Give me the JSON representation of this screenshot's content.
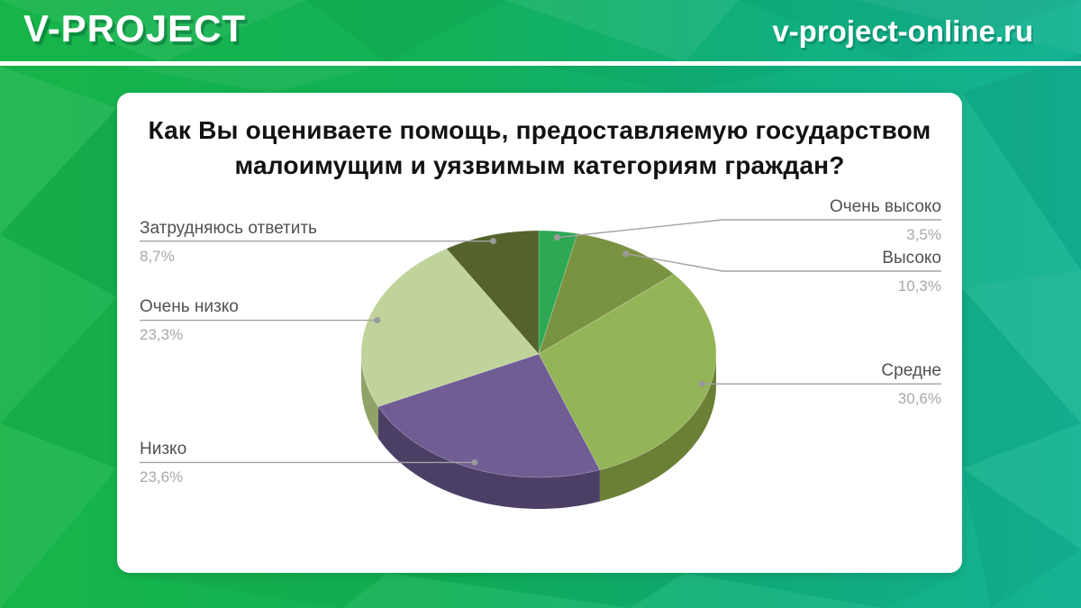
{
  "header": {
    "logo": "V-PROJECT",
    "site": "v-project-online.ru"
  },
  "chart_data": {
    "type": "pie",
    "projection": "3d",
    "title": "Как Вы оцениваете помощь, предоставляемую государством малоимущим и уязвимым категориям граждан?",
    "unit": "%",
    "direction": "clockwise",
    "start_angle_deg": 0,
    "legend": "none (callout labels with leader lines)",
    "slices": [
      {
        "label": "Очень высоко",
        "value": 3.5,
        "value_label": "3,5%",
        "color": "#2ea853",
        "side_color": "#1f7a3b"
      },
      {
        "label": "Высоко",
        "value": 10.3,
        "value_label": "10,3%",
        "color": "#7a9342",
        "side_color": "#57692e"
      },
      {
        "label": "Средне",
        "value": 30.6,
        "value_label": "30,6%",
        "color": "#94b458",
        "side_color": "#6a8036"
      },
      {
        "label": "Низко",
        "value": 23.6,
        "value_label": "23,6%",
        "color": "#6f5d93",
        "side_color": "#4c3f66"
      },
      {
        "label": "Очень низко",
        "value": 23.3,
        "value_label": "23,3%",
        "color": "#c0d39b",
        "side_color": "#8fa368"
      },
      {
        "label": "Затрудняюсь ответить",
        "value": 8.7,
        "value_label": "8,7%",
        "color": "#53632b",
        "side_color": "#3a4520"
      }
    ],
    "label_color": "#515151",
    "value_color": "#a8a8a8",
    "leader_color": "#a3a3a3",
    "dot_color": "#9a9a9a"
  },
  "theme": {
    "bg_left": "#17b449",
    "bg_green": "#12b156",
    "bg_teal_mid": "#10af7c",
    "bg_teal_right": "#14b394",
    "header_line": "#ffffff",
    "card_bg": "#ffffff",
    "title_color": "#121212"
  }
}
